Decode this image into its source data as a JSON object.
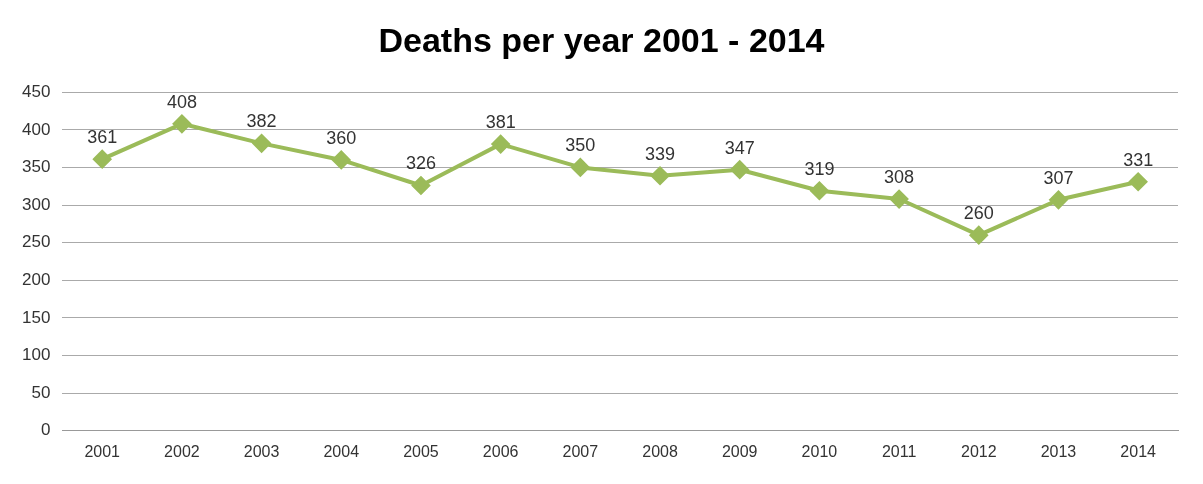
{
  "chart_data": {
    "type": "line",
    "title": "Deaths per year 2001 - 2014",
    "categories": [
      "2001",
      "2002",
      "2003",
      "2004",
      "2005",
      "2006",
      "2007",
      "2008",
      "2009",
      "2010",
      "2011",
      "2012",
      "2013",
      "2014"
    ],
    "values": [
      361,
      408,
      382,
      360,
      326,
      381,
      350,
      339,
      347,
      319,
      308,
      260,
      307,
      331
    ],
    "color": "#9bbb59",
    "ylim": [
      0,
      450
    ],
    "yticks": [
      0,
      50,
      100,
      150,
      200,
      250,
      300,
      350,
      400,
      450
    ],
    "grid": "y",
    "marker": "diamond",
    "line_style": "solid",
    "data_labels": true,
    "legend": false
  }
}
